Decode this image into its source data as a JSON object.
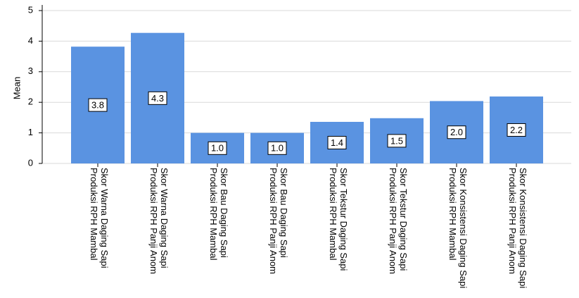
{
  "chart_data": {
    "type": "bar",
    "y_label": "Mean",
    "categories": [
      "Skor Warna Daging Sapi Produksi RPH Mambal",
      "Skor Warna Daging Sapi Produksi RPH Panji Anom",
      "Skor Bau Daging Sapi Produksi RPH Mambal",
      "Skor Bau Daging Sapi Produksi RPH Panji Anom",
      "Skor Tekstur Daging Sapi Produksi RPH Mambal",
      "Skor Tekstur Daging Sapi Produksi RPH Panji Anom",
      "Skor Konsistensi Daging Sapi Produksi RPH Mambal",
      "Skor Konsistensi Daging Sapi Produksi RPH Panji Anom"
    ],
    "values": [
      3.82,
      4.27,
      1.0,
      1.0,
      1.36,
      1.48,
      2.04,
      2.19
    ],
    "value_labels": [
      "3.8",
      "4.3",
      "1.0",
      "1.0",
      "1.4",
      "1.5",
      "2.0",
      "2.2"
    ],
    "color": "#5a93e1",
    "ylim": [
      0,
      5
    ],
    "yticks": [
      0,
      1,
      2,
      3,
      4,
      5
    ],
    "grid": true
  }
}
